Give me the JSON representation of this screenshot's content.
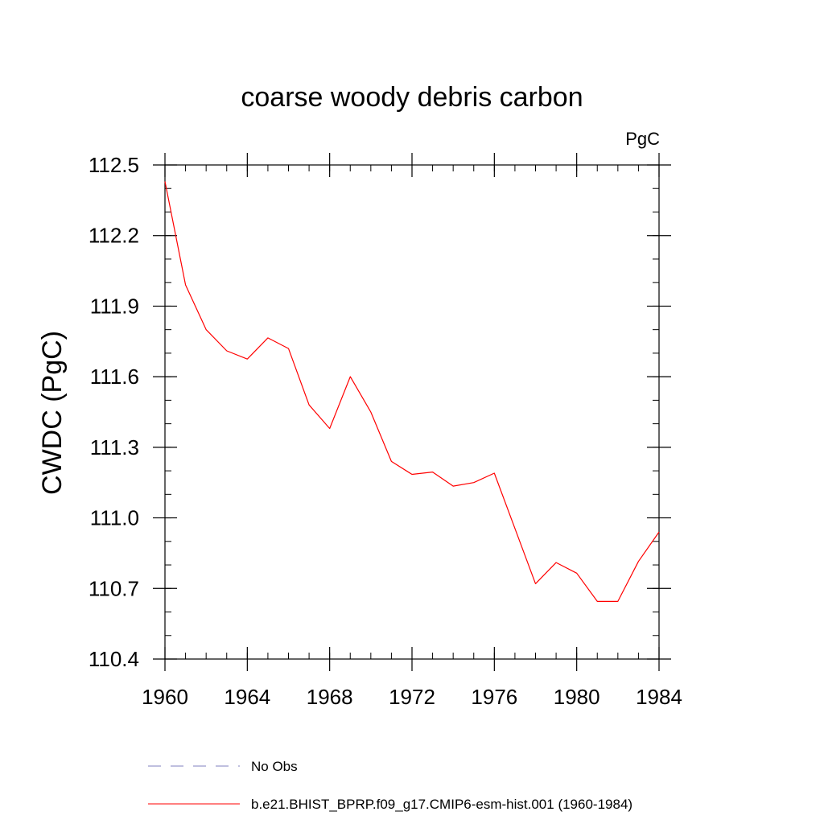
{
  "chart_data": {
    "type": "line",
    "title": "coarse woody debris carbon",
    "units_label": "PgC",
    "xlabel": "",
    "ylabel": "CWDC  (PgC)",
    "xlim": [
      1960,
      1984
    ],
    "ylim": [
      110.4,
      112.5
    ],
    "x_ticks": [
      1960,
      1964,
      1968,
      1972,
      1976,
      1980,
      1984
    ],
    "x_tick_labels": [
      "1960",
      "1964",
      "1968",
      "1972",
      "1976",
      "1980",
      "1984"
    ],
    "y_ticks": [
      110.4,
      110.7,
      111.0,
      111.3,
      111.6,
      111.9,
      112.2,
      112.5
    ],
    "y_tick_labels": [
      "110.4",
      "110.7",
      "111.0",
      "111.3",
      "111.6",
      "111.9",
      "112.2",
      "112.5"
    ],
    "x_minor_step": 1,
    "y_minor_step": 0.1,
    "grid": false,
    "legend_position": "bottom",
    "series": [
      {
        "name": "b.e21.BHIST_BPRP.f09_g17.CMIP6-esm-hist.001 (1960-1984)",
        "color": "#ff0000",
        "style": "solid",
        "x": [
          1960,
          1961,
          1962,
          1963,
          1964,
          1965,
          1966,
          1967,
          1968,
          1969,
          1970,
          1971,
          1972,
          1973,
          1974,
          1975,
          1976,
          1977,
          1978,
          1979,
          1980,
          1981,
          1982,
          1983,
          1984
        ],
        "y": [
          112.43,
          111.99,
          111.8,
          111.71,
          111.675,
          111.765,
          111.72,
          111.48,
          111.38,
          111.6,
          111.45,
          111.24,
          111.185,
          111.195,
          111.135,
          111.15,
          111.19,
          110.955,
          110.72,
          110.81,
          110.765,
          110.645,
          110.645,
          110.815,
          110.94
        ]
      }
    ],
    "legend": [
      {
        "label": "No Obs",
        "color": "#7f7fbf",
        "style": "dashed"
      },
      {
        "label": "b.e21.BHIST_BPRP.f09_g17.CMIP6-esm-hist.001 (1960-1984)",
        "color": "#ff0000",
        "style": "solid"
      }
    ]
  }
}
